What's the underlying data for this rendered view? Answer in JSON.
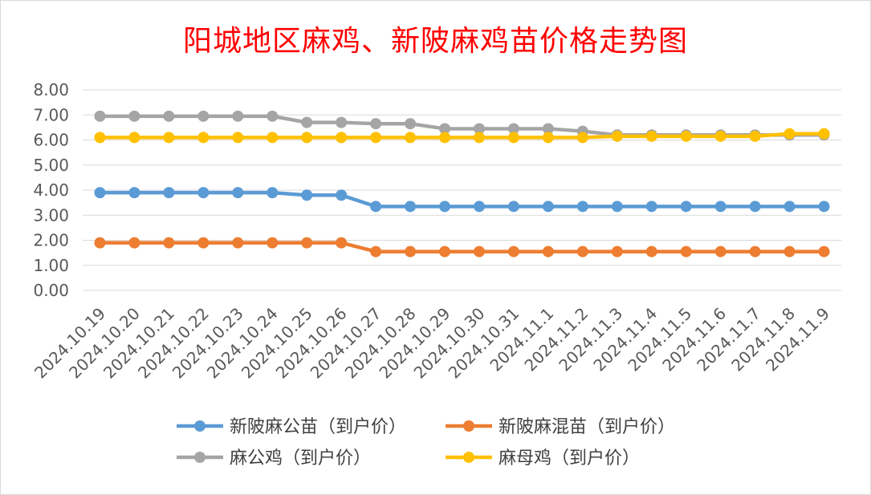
{
  "chart_data": {
    "type": "line",
    "title": "阳城地区麻鸡、新陂麻鸡苗价格走势图",
    "categories": [
      "2024.10.19",
      "2024.10.20",
      "2024.10.21",
      "2024.10.22",
      "2024.10.23",
      "2024.10.24",
      "2024.10.25",
      "2024.10.26",
      "2024.10.27",
      "2024.10.28",
      "2024.10.29",
      "2024.10.30",
      "2024.10.31",
      "2024.11.1",
      "2024.11.2",
      "2024.11.3",
      "2024.11.4",
      "2024.11.5",
      "2024.11.6",
      "2024.11.7",
      "2024.11.8",
      "2024.11.9"
    ],
    "ylim": [
      0,
      8
    ],
    "yticks": [
      "0.00",
      "1.00",
      "2.00",
      "3.00",
      "4.00",
      "5.00",
      "6.00",
      "7.00",
      "8.00"
    ],
    "grid": true,
    "legend_position": "bottom",
    "series": [
      {
        "name": "新陂麻公苗（到户价）",
        "color": "#5b9bd5",
        "values": [
          3.9,
          3.9,
          3.9,
          3.9,
          3.9,
          3.9,
          3.8,
          3.8,
          3.35,
          3.35,
          3.35,
          3.35,
          3.35,
          3.35,
          3.35,
          3.35,
          3.35,
          3.35,
          3.35,
          3.35,
          3.35,
          3.35
        ]
      },
      {
        "name": "新陂麻混苗（到户价）",
        "color": "#ed7d31",
        "values": [
          1.9,
          1.9,
          1.9,
          1.9,
          1.9,
          1.9,
          1.9,
          1.9,
          1.55,
          1.55,
          1.55,
          1.55,
          1.55,
          1.55,
          1.55,
          1.55,
          1.55,
          1.55,
          1.55,
          1.55,
          1.55,
          1.55
        ]
      },
      {
        "name": "麻公鸡（到户价）",
        "color": "#a5a5a5",
        "values": [
          6.95,
          6.95,
          6.95,
          6.95,
          6.95,
          6.95,
          6.7,
          6.7,
          6.65,
          6.65,
          6.45,
          6.45,
          6.45,
          6.45,
          6.35,
          6.2,
          6.2,
          6.2,
          6.2,
          6.2,
          6.2,
          6.2
        ]
      },
      {
        "name": "麻母鸡（到户价）",
        "color": "#ffc000",
        "values": [
          6.1,
          6.1,
          6.1,
          6.1,
          6.1,
          6.1,
          6.1,
          6.1,
          6.1,
          6.1,
          6.1,
          6.1,
          6.1,
          6.1,
          6.1,
          6.15,
          6.15,
          6.15,
          6.15,
          6.15,
          6.25,
          6.25
        ]
      }
    ]
  }
}
